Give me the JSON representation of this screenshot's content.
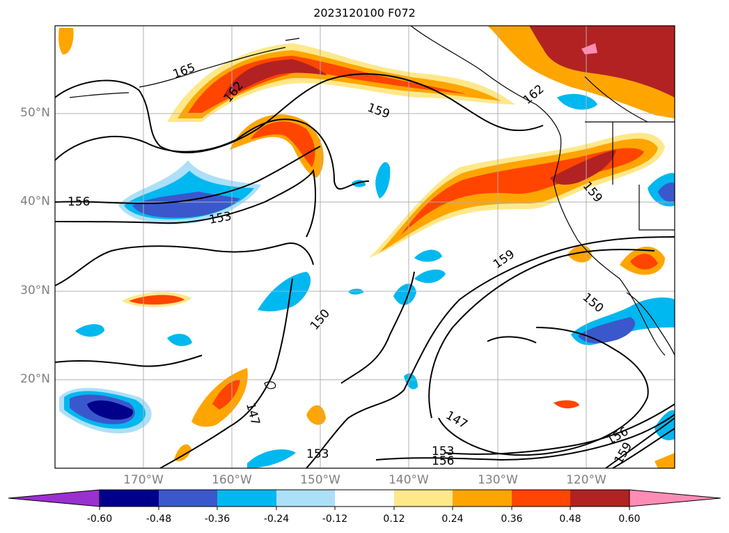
{
  "title": "2023120100 F072",
  "lat_labels": [
    "50°N",
    "40°N",
    "30°N",
    "20°N"
  ],
  "lon_labels": [
    "170°W",
    "160°W",
    "150°W",
    "140°W",
    "130°W",
    "120°W"
  ],
  "contour_labels": [
    "165",
    "162",
    "159",
    "162",
    "156",
    "153",
    "159",
    "159",
    "150",
    "150",
    "147",
    "147",
    "153",
    "156",
    "156",
    "159"
  ],
  "colorbar": {
    "ticks": [
      "-0.60",
      "-0.48",
      "-0.36",
      "-0.24",
      "-0.12",
      "0.12",
      "0.24",
      "0.36",
      "0.48",
      "0.60"
    ],
    "colors": [
      "#9a30d0",
      "#00008b",
      "#3a58cc",
      "#00b8f0",
      "#ace0f8",
      "#ffffff",
      "#ffe88a",
      "#ffa500",
      "#ff4500",
      "#b22222",
      "#ff8cb4"
    ]
  },
  "map_colors": {
    "land": "#e6e6e6",
    "pos1": "#ffe88a",
    "pos2": "#ffa500",
    "pos3": "#ff4500",
    "pos4": "#b22222",
    "pos5": "#ff8cb4",
    "neg1": "#ace0f8",
    "neg2": "#00b8f0",
    "neg3": "#3a58cc",
    "neg4": "#00008b"
  }
}
